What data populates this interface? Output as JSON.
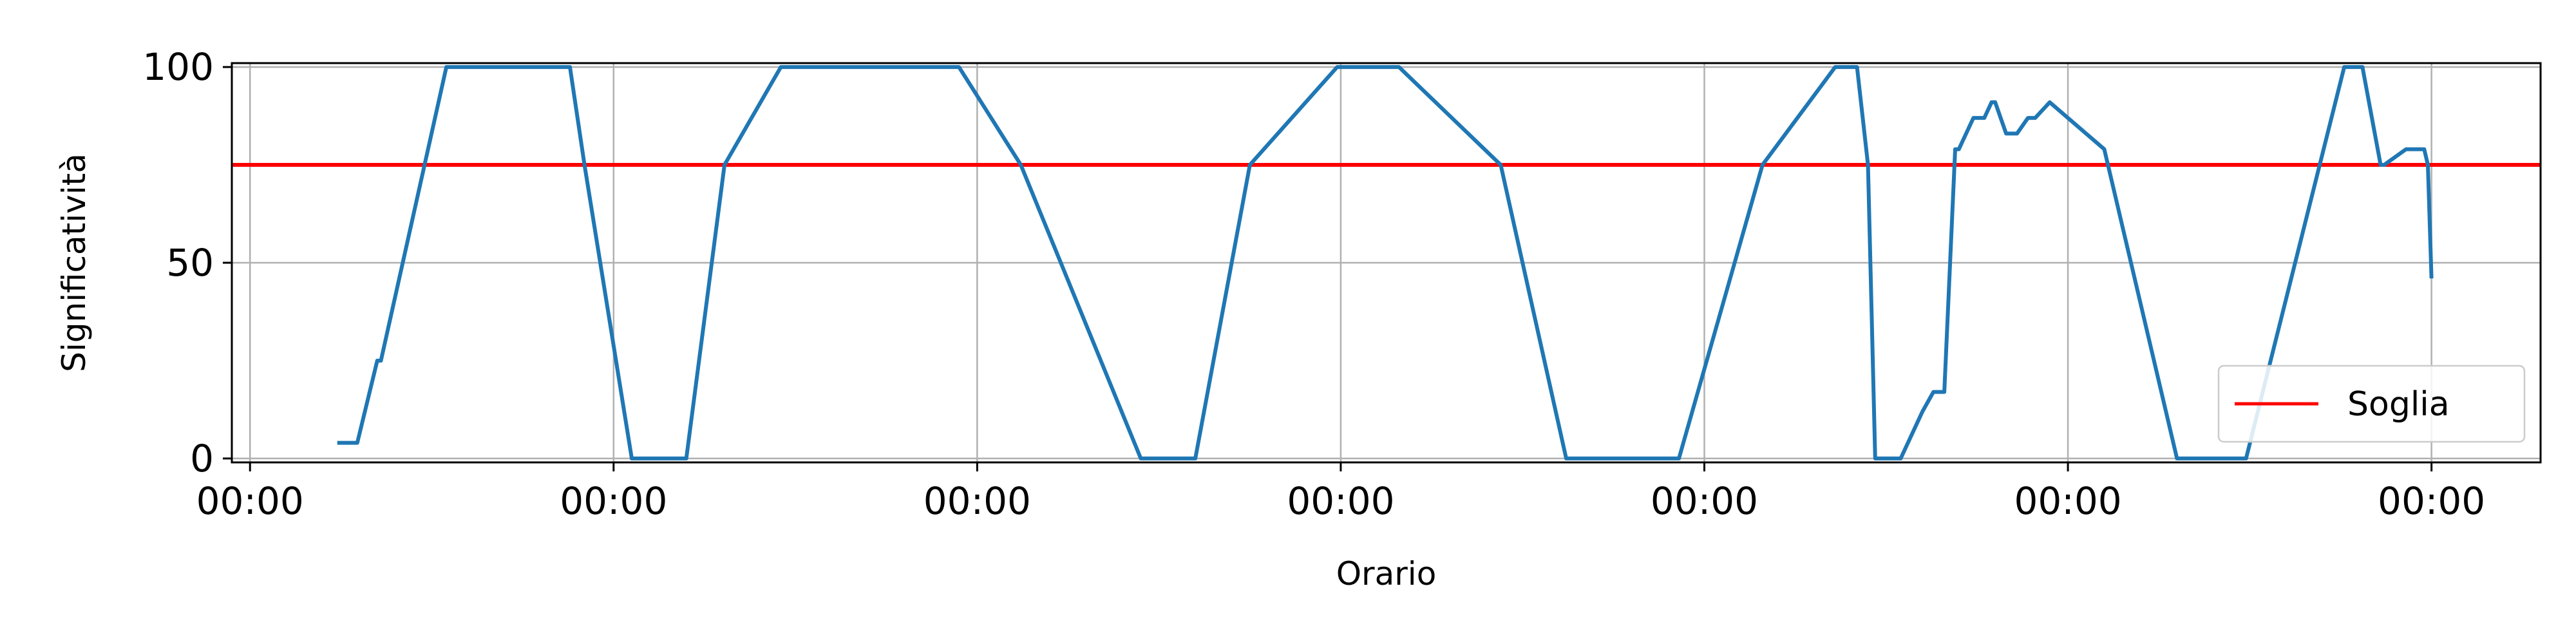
{
  "chart_data": {
    "type": "line",
    "title": "",
    "xlabel": "Orario",
    "ylabel": "Significatività",
    "xlim": [
      -0.05,
      6.3
    ],
    "ylim": [
      -1,
      101
    ],
    "grid": true,
    "legend_position": "lower-right",
    "x_ticks": [
      0,
      1,
      2,
      3,
      4,
      5,
      6
    ],
    "x_tick_labels": [
      "00:00",
      "00:00",
      "00:00",
      "00:00",
      "00:00",
      "00:00",
      "00:00"
    ],
    "y_ticks": [
      0,
      50,
      100
    ],
    "y_tick_labels": [
      "0",
      "50",
      "100"
    ],
    "threshold": {
      "name": "Soglia",
      "value": 75,
      "color": "#ff0000"
    },
    "series": [
      {
        "color": "#1f77b4",
        "x": [
          0.24,
          0.295,
          0.35,
          0.36,
          0.54,
          0.88,
          0.92,
          1.05,
          1.2,
          1.305,
          1.46,
          1.95,
          2.12,
          2.45,
          2.6,
          2.75,
          2.99,
          3.16,
          3.44,
          3.62,
          3.93,
          4.16,
          4.36,
          4.42,
          4.45,
          4.47,
          4.54,
          4.6,
          4.63,
          4.66,
          4.69,
          4.7,
          4.74,
          4.77,
          4.79,
          4.8,
          4.83,
          4.86,
          4.89,
          4.91,
          4.95,
          5.1,
          5.3,
          5.49,
          5.76,
          5.81,
          5.86,
          5.87,
          5.93,
          5.98,
          5.99,
          6.0
        ],
        "y": [
          4,
          4,
          25,
          25,
          100,
          100,
          75,
          0,
          0,
          75,
          100,
          100,
          75,
          0,
          0,
          75,
          100,
          100,
          75,
          0,
          0,
          75,
          100,
          100,
          75,
          0,
          0,
          12,
          17,
          17,
          79,
          79,
          87,
          87,
          91,
          91,
          83,
          83,
          87,
          87,
          91,
          79,
          0,
          0,
          100,
          100,
          75,
          75,
          79,
          79,
          75,
          46
        ]
      }
    ]
  }
}
